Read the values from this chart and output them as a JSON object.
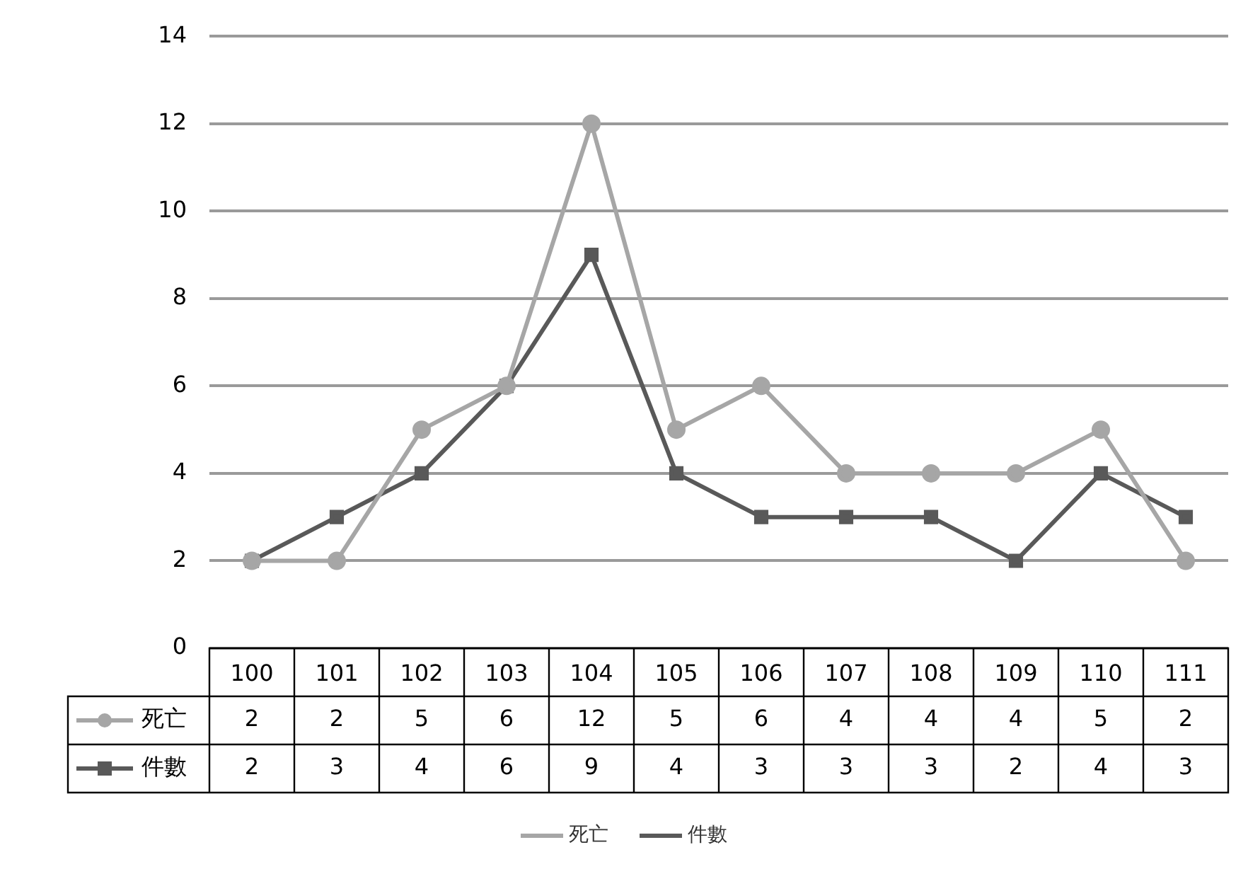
{
  "chart_data": {
    "type": "line",
    "categories": [
      "100",
      "101",
      "102",
      "103",
      "104",
      "105",
      "106",
      "107",
      "108",
      "109",
      "110",
      "111"
    ],
    "series": [
      {
        "name": "死亡",
        "color": "#a6a6a6",
        "marker": "circle",
        "values": [
          2,
          2,
          5,
          6,
          12,
          5,
          6,
          4,
          4,
          4,
          5,
          2
        ]
      },
      {
        "name": "件數",
        "color": "#595959",
        "marker": "square",
        "values": [
          2,
          3,
          4,
          6,
          9,
          4,
          3,
          3,
          3,
          2,
          4,
          3
        ]
      }
    ],
    "ylim": [
      0,
      14
    ],
    "yticks": [
      0,
      2,
      4,
      6,
      8,
      10,
      12,
      14
    ],
    "grid": "y",
    "legend": "bottom",
    "data_labels": true
  }
}
